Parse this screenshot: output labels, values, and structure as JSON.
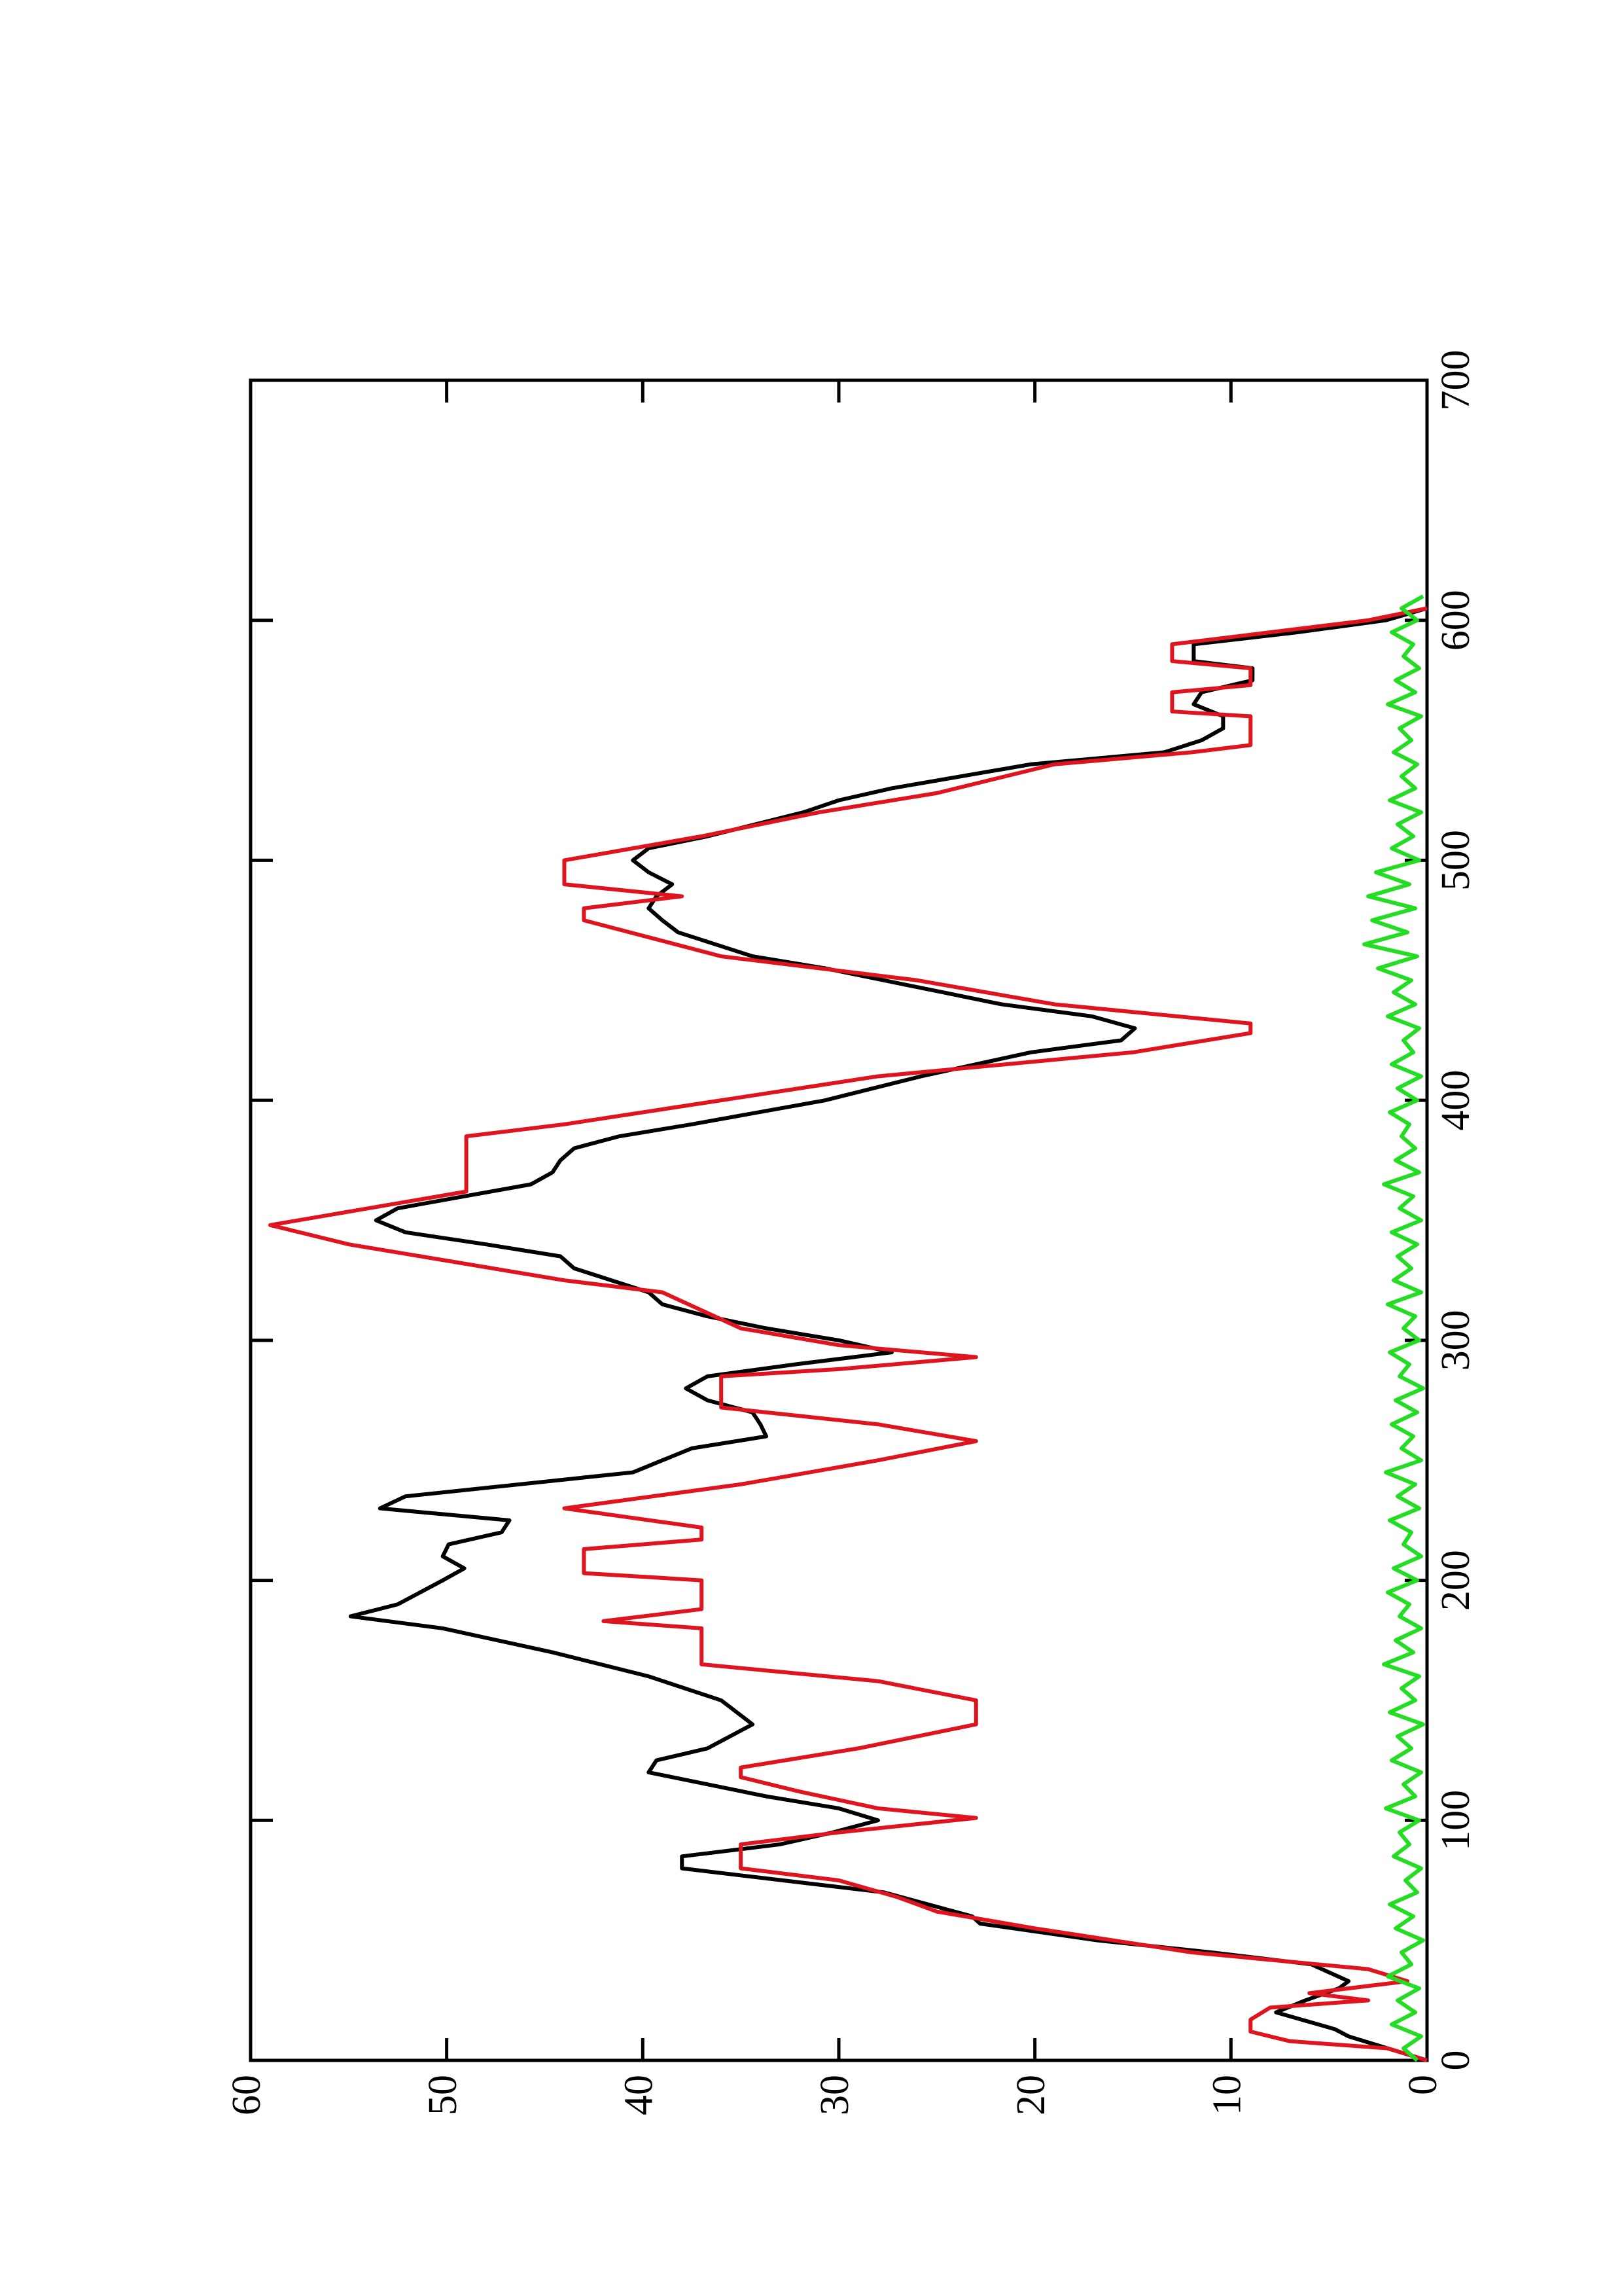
{
  "chart_data": {
    "type": "line",
    "xlim": [
      0,
      700
    ],
    "xticks": [
      0,
      100,
      200,
      300,
      400,
      500,
      600,
      700
    ],
    "ylim": [
      0,
      60
    ],
    "yticks": [
      0,
      10,
      20,
      30,
      40,
      50,
      60
    ],
    "series": [
      {
        "color": "#000000",
        "x": [
          0,
          10,
          13,
          20,
          25,
          30,
          33,
          40,
          45,
          50,
          57,
          60,
          70,
          80,
          85,
          90,
          95,
          100,
          105,
          110,
          120,
          125,
          130,
          140,
          150,
          160,
          170,
          180,
          185,
          190,
          200,
          205,
          210,
          215,
          220,
          225,
          230,
          235,
          245,
          250,
          255,
          260,
          265,
          270,
          275,
          280,
          285,
          290,
          295,
          300,
          305,
          310,
          315,
          320,
          330,
          335,
          340,
          345,
          350,
          355,
          365,
          370,
          375,
          380,
          385,
          390,
          400,
          410,
          420,
          425,
          430,
          435,
          440,
          445,
          450,
          455,
          460,
          470,
          475,
          480,
          485,
          490,
          495,
          500,
          505,
          510,
          520,
          525,
          530,
          540,
          545,
          550,
          555,
          560,
          565,
          570,
          575,
          580,
          583,
          590,
          595,
          600,
          605
        ],
        "values": [
          0,
          4,
          4.7,
          7.7,
          6.2,
          4.5,
          4,
          5.9,
          11,
          16.8,
          22.8,
          23.2,
          27.7,
          38,
          38,
          33,
          30.3,
          28,
          30,
          33.7,
          39.7,
          39.3,
          36.7,
          34.4,
          36,
          39.7,
          44.6,
          50.2,
          54.9,
          52.5,
          50.2,
          49.1,
          50.2,
          49.9,
          47.2,
          46.8,
          53.4,
          52.1,
          40.5,
          39,
          37.5,
          33.7,
          34,
          34.4,
          36.7,
          37.8,
          36.7,
          32.2,
          27.3,
          30,
          33.7,
          36.7,
          39,
          39.7,
          43.5,
          44.2,
          48,
          52.1,
          53.6,
          52.5,
          45.7,
          44.6,
          44.2,
          43.5,
          41.2,
          37.5,
          30.7,
          25.8,
          20.2,
          15.6,
          14.9,
          17.1,
          21.7,
          24.7,
          27.7,
          30.7,
          34.4,
          38.2,
          39,
          39.7,
          39.3,
          38.5,
          39.7,
          40.5,
          39.7,
          36.7,
          31.8,
          30,
          27.3,
          20.2,
          13.4,
          11.5,
          10.4,
          10.4,
          11.9,
          11.5,
          8.9,
          8.9,
          11.9,
          11.9,
          6.6,
          2.1,
          0
        ]
      },
      {
        "color": "#e0141e",
        "x": [
          0,
          5,
          8,
          12,
          17,
          22,
          25,
          28,
          33,
          38,
          45,
          55,
          62,
          68,
          75,
          80,
          90,
          95,
          101,
          105,
          112,
          118,
          122,
          130,
          140,
          150,
          158,
          165,
          180,
          183,
          188,
          200,
          203,
          213,
          217,
          222,
          230,
          240,
          250,
          258,
          265,
          272,
          285,
          288,
          293,
          298,
          305,
          320,
          325,
          340,
          348,
          362,
          385,
          390,
          400,
          410,
          420,
          428,
          432,
          440,
          450,
          460,
          475,
          480,
          485,
          490,
          500,
          510,
          520,
          528,
          540,
          545,
          548,
          560,
          562,
          570,
          573,
          580,
          583,
          590,
          600,
          605
        ],
        "values": [
          0,
          2,
          7,
          9,
          9,
          8,
          3,
          6,
          1,
          3,
          12,
          20,
          25,
          27,
          30,
          35,
          35,
          30,
          23,
          28,
          32,
          35,
          35,
          29,
          23,
          23,
          28,
          37,
          37,
          42,
          37,
          37,
          43,
          43,
          37,
          37,
          44,
          35,
          28,
          23,
          28,
          36,
          36,
          30,
          23,
          30,
          35,
          39,
          44,
          55,
          59,
          49,
          49,
          44,
          36,
          28,
          15,
          9,
          9,
          19,
          26,
          36,
          43,
          43,
          38,
          44,
          44,
          37,
          31,
          25,
          19,
          12,
          9,
          9,
          13,
          13,
          9,
          9,
          13,
          13,
          3,
          0
        ]
      },
      {
        "color": "#22dd22",
        "x": [
          0,
          5,
          10,
          15,
          20,
          25,
          30,
          35,
          40,
          45,
          50,
          55,
          60,
          65,
          70,
          75,
          80,
          85,
          90,
          95,
          100,
          105,
          110,
          115,
          120,
          125,
          130,
          135,
          140,
          145,
          150,
          155,
          160,
          165,
          170,
          175,
          180,
          185,
          190,
          195,
          200,
          205,
          210,
          215,
          220,
          225,
          230,
          235,
          240,
          245,
          250,
          255,
          260,
          265,
          270,
          275,
          280,
          285,
          290,
          295,
          300,
          305,
          310,
          315,
          320,
          325,
          330,
          335,
          340,
          345,
          350,
          355,
          360,
          365,
          370,
          375,
          380,
          385,
          390,
          395,
          400,
          405,
          410,
          415,
          420,
          425,
          430,
          435,
          440,
          445,
          450,
          455,
          460,
          465,
          470,
          475,
          480,
          485,
          490,
          495,
          500,
          505,
          510,
          515,
          520,
          525,
          530,
          535,
          540,
          545,
          550,
          555,
          560,
          565,
          570,
          575,
          580,
          585,
          590,
          595,
          600,
          605,
          610
        ],
        "values": [
          0.5,
          1.2,
          0.3,
          1.8,
          0.6,
          1.5,
          0.4,
          2.0,
          0.8,
          1.3,
          0.2,
          1.6,
          0.7,
          1.9,
          0.5,
          1.1,
          0.3,
          1.7,
          0.9,
          1.4,
          0.4,
          2.1,
          0.6,
          1.2,
          0.3,
          1.8,
          0.8,
          1.5,
          0.2,
          1.9,
          0.6,
          1.3,
          0.4,
          2.2,
          0.7,
          1.6,
          0.3,
          1.4,
          0.9,
          2.0,
          0.5,
          1.7,
          0.3,
          1.2,
          0.8,
          1.9,
          0.4,
          1.5,
          0.6,
          2.1,
          0.3,
          1.3,
          0.7,
          1.8,
          0.5,
          1.6,
          0.2,
          1.4,
          0.9,
          1.9,
          0.4,
          1.2,
          0.6,
          2.0,
          0.3,
          1.7,
          0.8,
          1.5,
          0.5,
          1.8,
          0.3,
          1.4,
          0.7,
          2.2,
          0.4,
          1.6,
          0.6,
          1.3,
          0.9,
          1.9,
          0.5,
          1.5,
          0.3,
          1.8,
          0.7,
          1.2,
          0.4,
          2.0,
          0.6,
          1.7,
          0.8,
          2.5,
          0.5,
          3.2,
          1.0,
          2.8,
          0.6,
          3.0,
          0.9,
          2.6,
          0.4,
          1.8,
          0.7,
          1.5,
          0.3,
          1.9,
          0.6,
          1.3,
          0.5,
          1.7,
          0.8,
          1.4,
          0.3,
          2.0,
          0.6,
          1.6,
          0.4,
          1.2,
          0.7,
          1.8,
          0.5,
          1.3,
          0.2
        ]
      }
    ]
  }
}
